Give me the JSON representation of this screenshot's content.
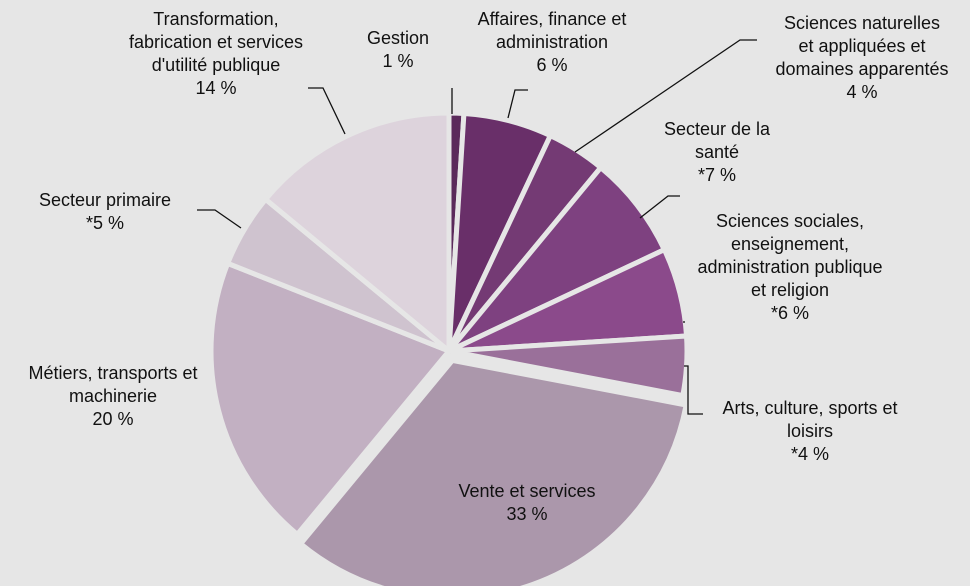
{
  "chart_data": {
    "type": "pie",
    "categories": [
      "Gestion",
      "Affaires, finance et administration",
      "Sciences naturelles et appliquées et domaines apparentés",
      "Secteur de la santé",
      "Sciences sociales, enseignement, administration publique et religion",
      "Arts, culture, sports et loisirs",
      "Vente et services",
      "Métiers, transports et machinerie",
      "Secteur primaire",
      "Transformation, fabrication et services d'utilité publique"
    ],
    "values": [
      1,
      6,
      4,
      7,
      6,
      4,
      33,
      20,
      5,
      14
    ],
    "value_labels": [
      "1 %",
      "6 %",
      "4 %",
      "*7 %",
      "*6 %",
      "*4 %",
      "33 %",
      "20 %",
      "*5 %",
      "14 %"
    ],
    "colors": [
      "#5b2a5b",
      "#692f69",
      "#743a74",
      "#7e4180",
      "#8b4a8b",
      "#9a709a",
      "#ab97ab",
      "#c2b0c2",
      "#cfc3cf",
      "#ddd3dc"
    ]
  }
}
